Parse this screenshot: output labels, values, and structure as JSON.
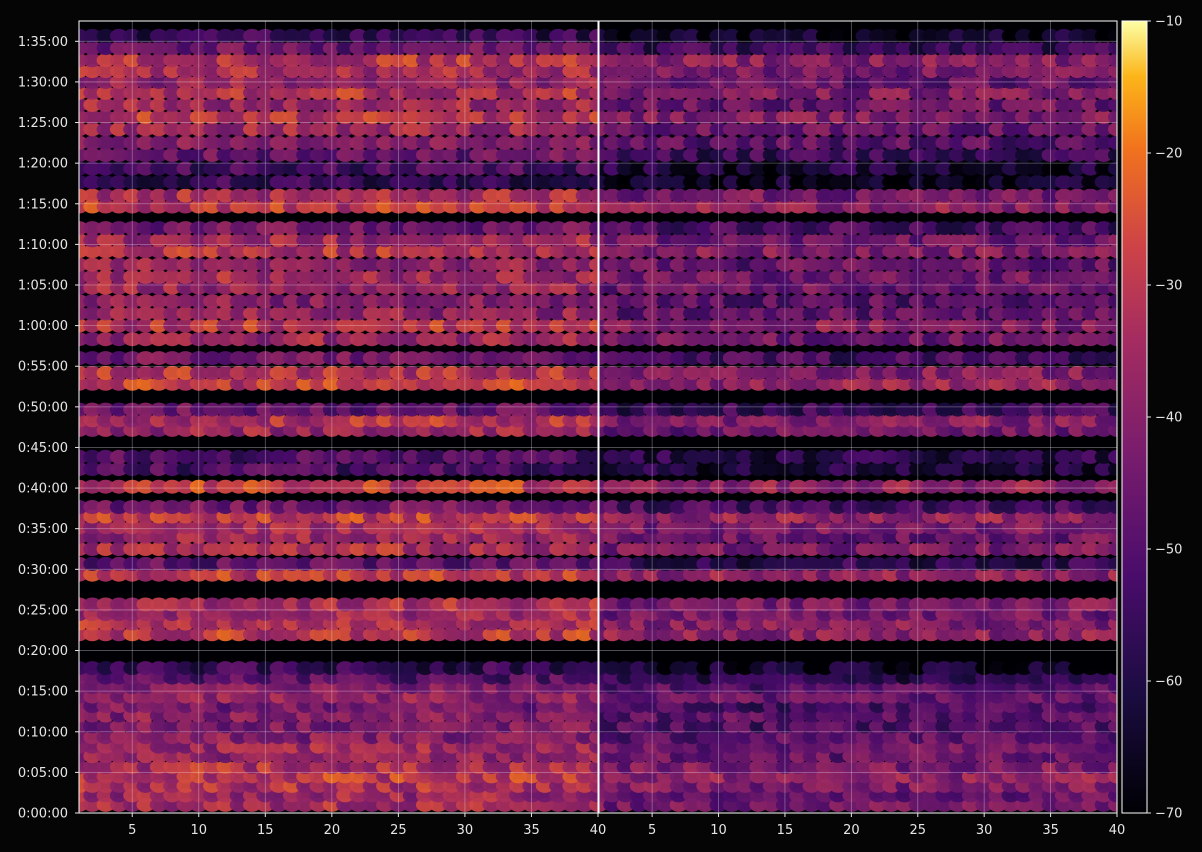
{
  "chart_data": {
    "type": "heatmap",
    "title": "",
    "xlabel": "",
    "ylabel": "",
    "grid": true,
    "colormap": "inferno",
    "panels": [
      {
        "name": "",
        "xlim": [
          1,
          40
        ],
        "x_ticks": [
          5,
          10,
          15,
          20,
          25,
          30,
          35,
          40
        ],
        "x_tick_labels": [
          "5",
          "10",
          "15",
          "20",
          "25",
          "30",
          "35",
          "40"
        ]
      },
      {
        "name": "",
        "xlim": [
          1,
          40
        ],
        "x_ticks": [
          5,
          10,
          15,
          20,
          25,
          30,
          35,
          40
        ],
        "x_tick_labels": [
          "5",
          "10",
          "15",
          "20",
          "25",
          "30",
          "35",
          "40"
        ]
      }
    ],
    "y_axis": {
      "unit": "seconds",
      "ylim": [
        0,
        5850
      ],
      "ticks": [
        0,
        300,
        600,
        900,
        1200,
        1500,
        1800,
        2100,
        2400,
        2700,
        3000,
        3300,
        3600,
        3900,
        4200,
        4500,
        4800,
        5100,
        5400,
        5700
      ],
      "tick_labels": [
        "0:00:00",
        "0:05:00",
        "0:10:00",
        "0:15:00",
        "0:20:00",
        "0:25:00",
        "0:30:00",
        "0:35:00",
        "0:40:00",
        "0:45:00",
        "0:50:00",
        "0:55:00",
        "1:00:00",
        "1:05:00",
        "1:10:00",
        "1:15:00",
        "1:20:00",
        "1:25:00",
        "1:30:00",
        "1:35:00"
      ]
    },
    "colorbar": {
      "vmin": -70,
      "vmax": -10,
      "ticks": [
        -70,
        -60,
        -50,
        -40,
        -30,
        -20,
        -10
      ],
      "tick_labels": [
        "−70",
        "−60",
        "−50",
        "−40",
        "−30",
        "−20",
        "−10"
      ]
    },
    "rows": [
      {
        "t": 60,
        "v": -34
      },
      {
        "t": 130,
        "v": -36
      },
      {
        "t": 200,
        "v": -33
      },
      {
        "t": 270,
        "v": -30
      },
      {
        "t": 340,
        "v": -33
      },
      {
        "t": 420,
        "v": -38
      },
      {
        "t": 490,
        "v": -36
      },
      {
        "t": 560,
        "v": -40
      },
      {
        "t": 640,
        "v": -42
      },
      {
        "t": 720,
        "v": -40
      },
      {
        "t": 790,
        "v": -43
      },
      {
        "t": 860,
        "v": -38
      },
      {
        "t": 930,
        "v": -40
      },
      {
        "t": 1000,
        "v": -50
      },
      {
        "t": 1070,
        "v": -56
      },
      {
        "t": 1320,
        "v": -30
      },
      {
        "t": 1400,
        "v": -32
      },
      {
        "t": 1470,
        "v": -35
      },
      {
        "t": 1540,
        "v": -33
      },
      {
        "t": 1760,
        "v": -30
      },
      {
        "t": 1840,
        "v": -48
      },
      {
        "t": 1950,
        "v": -33
      },
      {
        "t": 2040,
        "v": -36
      },
      {
        "t": 2110,
        "v": -34
      },
      {
        "t": 2190,
        "v": -29
      },
      {
        "t": 2260,
        "v": -44
      },
      {
        "t": 2410,
        "v": -29
      },
      {
        "t": 2540,
        "v": -52
      },
      {
        "t": 2630,
        "v": -50
      },
      {
        "t": 2830,
        "v": -36
      },
      {
        "t": 2900,
        "v": -32
      },
      {
        "t": 2980,
        "v": -46
      },
      {
        "t": 3170,
        "v": -29
      },
      {
        "t": 3250,
        "v": -32
      },
      {
        "t": 3360,
        "v": -44
      },
      {
        "t": 3500,
        "v": -36
      },
      {
        "t": 3600,
        "v": -31
      },
      {
        "t": 3690,
        "v": -38
      },
      {
        "t": 3780,
        "v": -40
      },
      {
        "t": 3880,
        "v": -36
      },
      {
        "t": 3960,
        "v": -35
      },
      {
        "t": 4050,
        "v": -38
      },
      {
        "t": 4150,
        "v": -32
      },
      {
        "t": 4230,
        "v": -36
      },
      {
        "t": 4320,
        "v": -44
      },
      {
        "t": 4480,
        "v": -30
      },
      {
        "t": 4560,
        "v": -34
      },
      {
        "t": 4660,
        "v": -56
      },
      {
        "t": 4760,
        "v": -52
      },
      {
        "t": 4860,
        "v": -46
      },
      {
        "t": 4950,
        "v": -40
      },
      {
        "t": 5050,
        "v": -36
      },
      {
        "t": 5140,
        "v": -31
      },
      {
        "t": 5230,
        "v": -36
      },
      {
        "t": 5320,
        "v": -32
      },
      {
        "t": 5400,
        "v": -38
      },
      {
        "t": 5480,
        "v": -34
      },
      {
        "t": 5560,
        "v": -31
      },
      {
        "t": 5650,
        "v": -46
      },
      {
        "t": 5740,
        "v": -56
      }
    ]
  }
}
